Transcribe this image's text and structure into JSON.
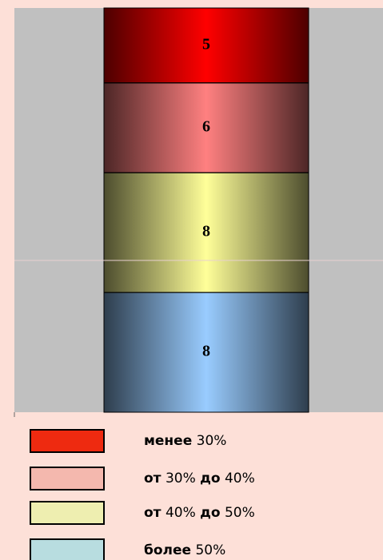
{
  "chart_data": {
    "type": "stacked_bar",
    "categories": [
      null
    ],
    "series": [
      {
        "name": "более  50%",
        "color": "#99ccff",
        "legend_color": "#b8dde0",
        "values": [
          8
        ]
      },
      {
        "name": "от 40% до 50%",
        "color": "#ffff99",
        "legend_color": "#eeeeb0",
        "values": [
          8
        ]
      },
      {
        "name": "от 30% до 40%",
        "color": "#ff8080",
        "legend_color": "#f4b8ae",
        "values": [
          6
        ]
      },
      {
        "name": "менее 30%",
        "color": "#ff0000",
        "legend_color": "#ee2a10",
        "values": [
          5
        ]
      }
    ],
    "ylim": [
      0,
      27
    ]
  }
}
